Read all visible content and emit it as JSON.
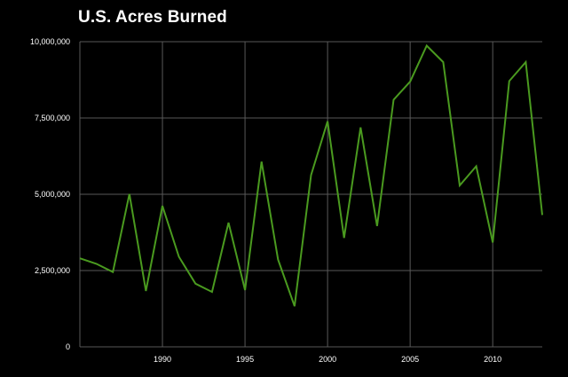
{
  "chart_data": {
    "type": "line",
    "title": "U.S. Acres Burned",
    "xlabel": "",
    "ylabel": "",
    "xlim": [
      1985,
      2013
    ],
    "ylim": [
      0,
      10000000
    ],
    "x_ticks": [
      1990,
      1995,
      2000,
      2005,
      2010
    ],
    "x_tick_labels": [
      "1990",
      "1995",
      "2000",
      "2005",
      "2010"
    ],
    "y_ticks": [
      0,
      2500000,
      5000000,
      7500000,
      10000000
    ],
    "y_tick_labels": [
      "0",
      "2,500,000",
      "5,000,000",
      "7,500,000",
      "10,000,000"
    ],
    "grid": true,
    "legend": "none",
    "background_color": "#000000",
    "grid_color": "#595959",
    "text_color": "#ffffff",
    "series": [
      {
        "color": "#4a9a1f",
        "x": [
          1985,
          1986,
          1987,
          1988,
          1989,
          1990,
          1991,
          1992,
          1993,
          1994,
          1995,
          1996,
          1997,
          1998,
          1999,
          2000,
          2001,
          2002,
          2003,
          2004,
          2005,
          2006,
          2007,
          2008,
          2009,
          2010,
          2011,
          2012,
          2013
        ],
        "values": [
          2900000,
          2720000,
          2450000,
          5010000,
          1830000,
          4620000,
          2950000,
          2070000,
          1800000,
          4070000,
          1860000,
          6070000,
          2860000,
          1330000,
          5630000,
          7390000,
          3570000,
          7190000,
          3960000,
          8100000,
          8690000,
          9870000,
          9330000,
          5290000,
          5920000,
          3420000,
          8710000,
          9330000,
          4320000
        ]
      }
    ]
  }
}
